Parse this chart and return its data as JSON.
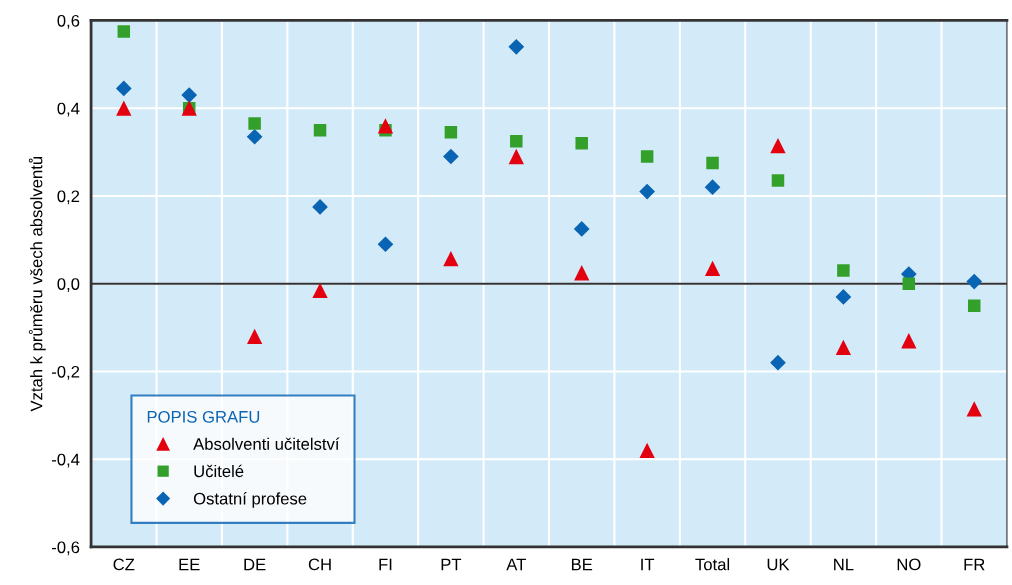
{
  "chart_data": {
    "type": "scatter",
    "ylabel": "Vztah k průměru všech absolventů",
    "legend_title": "POPIS GRAFU",
    "categories": [
      "CZ",
      "EE",
      "DE",
      "CH",
      "FI",
      "PT",
      "AT",
      "BE",
      "IT",
      "Total",
      "UK",
      "NL",
      "NO",
      "FR"
    ],
    "series": [
      {
        "name": "Absolventi učitelství",
        "color": "#e3000f",
        "marker": "triangle",
        "values": [
          0.4,
          0.4,
          -0.12,
          -0.015,
          0.36,
          0.057,
          0.29,
          0.025,
          -0.38,
          0.035,
          0.315,
          -0.145,
          -0.13,
          -0.285
        ]
      },
      {
        "name": "Učitelé",
        "color": "#33a02c",
        "marker": "square",
        "values": [
          0.575,
          0.4,
          0.365,
          0.35,
          0.35,
          0.345,
          0.325,
          0.32,
          0.29,
          0.275,
          0.235,
          0.03,
          0.0,
          -0.05
        ]
      },
      {
        "name": "Ostatní profese",
        "color": "#0a64b4",
        "marker": "diamond",
        "values": [
          0.445,
          0.43,
          0.335,
          0.175,
          0.09,
          0.29,
          0.54,
          0.125,
          0.21,
          0.22,
          -0.18,
          -0.03,
          0.022,
          0.005
        ]
      }
    ],
    "ylim": [
      -0.6,
      0.6
    ],
    "yticks": [
      {
        "value": -0.6,
        "label": "-0,6"
      },
      {
        "value": -0.4,
        "label": "-0,4"
      },
      {
        "value": -0.2,
        "label": "-0,2"
      },
      {
        "value": 0.0,
        "label": "0,0"
      },
      {
        "value": 0.2,
        "label": "0,2"
      },
      {
        "value": 0.4,
        "label": "0,4"
      },
      {
        "value": 0.6,
        "label": "0,6"
      }
    ],
    "ref_lines": [
      {
        "axis": "y",
        "value": 0,
        "color": "#333333",
        "line_style": "solid"
      }
    ],
    "grid": true,
    "legend": "bottom left"
  }
}
